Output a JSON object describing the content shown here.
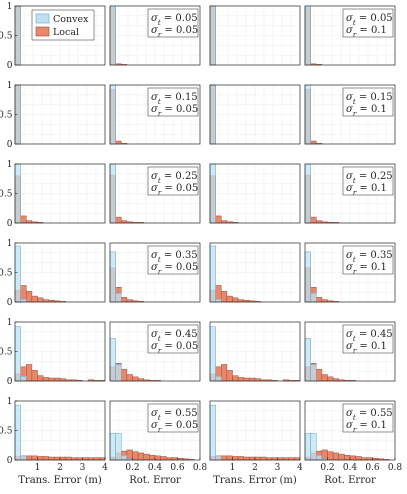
{
  "colors": {
    "convex_fill": "#bfe1f2",
    "convex_edge": "#5aa7d8",
    "local_fill": "#e8876a",
    "local_edge": "#a64a35",
    "grid": "#cfcfcf",
    "axis": "#262626"
  },
  "legend": {
    "placement": "top-left of first panel",
    "entries": [
      "Convex",
      "Local"
    ]
  },
  "chart_data": {
    "type": "bar",
    "layout": "6 rows x 4 columns of histograms",
    "columns": [
      {
        "metric": "trans",
        "xlabel": "Trans. Error (m)",
        "xlim": [
          0,
          4
        ],
        "xticks": [
          "1",
          "2",
          "3",
          "4"
        ],
        "tick_values": [
          1,
          2,
          3,
          4
        ],
        "bin_width": 0.25
      },
      {
        "metric": "rot",
        "xlabel": "Rot. Error",
        "xlim": [
          0,
          0.8
        ],
        "xticks": [
          "0.2",
          "0.4",
          "0.6",
          "0.8"
        ],
        "tick_values": [
          0.2,
          0.4,
          0.6,
          0.8
        ],
        "bin_width": 0.05
      },
      {
        "metric": "trans",
        "xlabel": "Trans. Error (m)",
        "xlim": [
          0,
          4
        ],
        "xticks": [
          "1",
          "2",
          "3",
          "4"
        ],
        "tick_values": [
          1,
          2,
          3,
          4
        ],
        "bin_width": 0.25
      },
      {
        "metric": "rot",
        "xlabel": "Rot. Error",
        "xlim": [
          0,
          0.8
        ],
        "xticks": [
          "0.2",
          "0.4",
          "0.6",
          "0.8"
        ],
        "tick_values": [
          0.2,
          0.4,
          0.6,
          0.8
        ],
        "bin_width": 0.05
      }
    ],
    "ylim": [
      0,
      1
    ],
    "yticks": [
      "0",
      "0.5",
      "1"
    ],
    "ytick_values": [
      0,
      0.5,
      1
    ],
    "grid": true,
    "rows": [
      {
        "sigma_t": "0.05",
        "sigma_r": [
          "0.05",
          "0.1"
        ],
        "series": [
          {
            "name": "Convex",
            "trans": [
              1.0
            ],
            "rot": [
              1.0
            ]
          },
          {
            "name": "Local",
            "trans": [
              1.0
            ],
            "rot": [
              0.97,
              0.02,
              0.01
            ]
          }
        ]
      },
      {
        "sigma_t": "0.15",
        "sigma_r": [
          "0.05",
          "0.1"
        ],
        "series": [
          {
            "name": "Convex",
            "trans": [
              1.0
            ],
            "rot": [
              1.0
            ]
          },
          {
            "name": "Local",
            "trans": [
              1.0
            ],
            "rot": [
              0.93,
              0.05,
              0.01
            ]
          }
        ]
      },
      {
        "sigma_t": "0.25",
        "sigma_r": [
          "0.05",
          "0.1"
        ],
        "series": [
          {
            "name": "Convex",
            "trans": [
              1.0
            ],
            "rot": [
              1.0
            ]
          },
          {
            "name": "Local",
            "trans": [
              0.8,
              0.12,
              0.04,
              0.02,
              0.01
            ],
            "rot": [
              0.81,
              0.1,
              0.04,
              0.02,
              0.01,
              0.01
            ]
          }
        ]
      },
      {
        "sigma_t": "0.35",
        "sigma_r": [
          "0.05",
          "0.1"
        ],
        "series": [
          {
            "name": "Convex",
            "trans": [
              0.95,
              0.05
            ],
            "rot": [
              0.85,
              0.15
            ]
          },
          {
            "name": "Local",
            "trans": [
              0.2,
              0.28,
              0.18,
              0.1,
              0.07,
              0.04,
              0.03,
              0.02,
              0.01
            ],
            "rot": [
              0.58,
              0.25,
              0.08,
              0.04,
              0.02,
              0.01
            ]
          }
        ]
      },
      {
        "sigma_t": "0.45",
        "sigma_r": [
          "0.05",
          "0.1"
        ],
        "series": [
          {
            "name": "Convex",
            "trans": [
              0.92,
              0.08
            ],
            "rot": [
              0.72,
              0.28
            ]
          },
          {
            "name": "Local",
            "trans": [
              0.12,
              0.24,
              0.28,
              0.18,
              0.09,
              0.06,
              0.05,
              0.05,
              0.04,
              0.02,
              0.02,
              0.01,
              0.0,
              0.02,
              0.01,
              0.01
            ],
            "rot": [
              0.24,
              0.3,
              0.2,
              0.11,
              0.07,
              0.04,
              0.02,
              0.01,
              0.01
            ]
          }
        ]
      },
      {
        "sigma_t": "0.55",
        "sigma_r": [
          "0.05",
          "0.1"
        ],
        "series": [
          {
            "name": "Convex",
            "trans": [
              0.93,
              0.07
            ],
            "rot": [
              0.45,
              0.45,
              0.08,
              0.02
            ]
          },
          {
            "name": "Local",
            "trans": [
              0.06,
              0.07,
              0.07,
              0.07,
              0.06,
              0.06,
              0.05,
              0.05,
              0.05,
              0.05,
              0.04,
              0.04,
              0.04,
              0.04,
              0.04,
              0.04
            ],
            "rot": [
              0.05,
              0.12,
              0.15,
              0.17,
              0.14,
              0.12,
              0.1,
              0.08,
              0.07,
              0.06,
              0.04,
              0.04,
              0.03,
              0.02,
              0.01
            ]
          }
        ]
      }
    ]
  }
}
